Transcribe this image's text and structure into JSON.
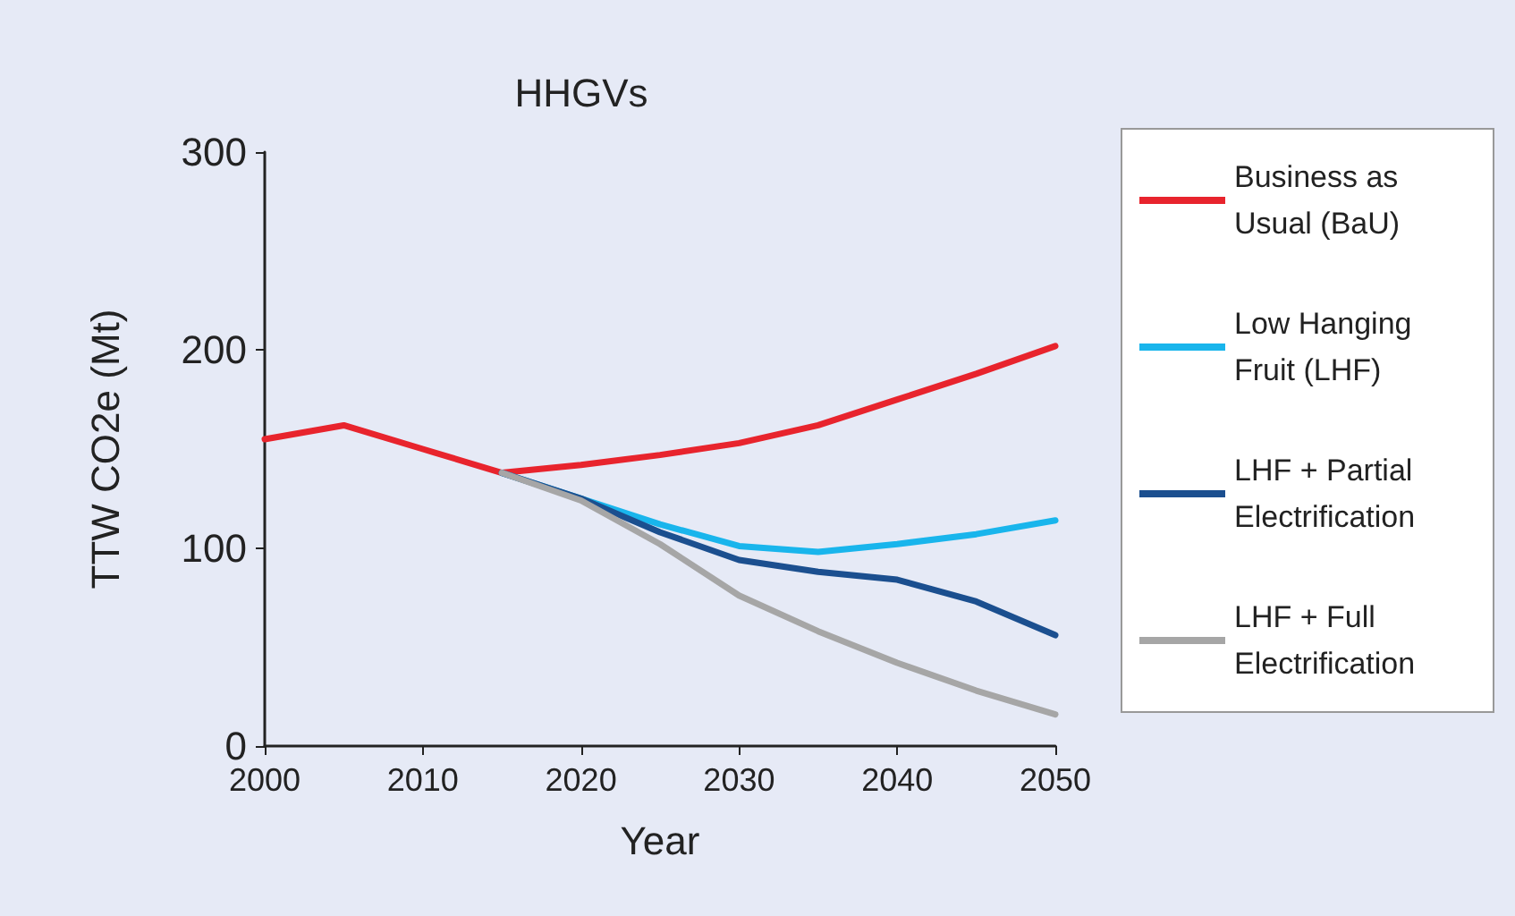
{
  "chart_data": {
    "type": "line",
    "title": "HHGVs",
    "xlabel": "Year",
    "ylabel": "TTW CO2e (Mt)",
    "x": [
      2000,
      2005,
      2010,
      2015,
      2020,
      2025,
      2030,
      2035,
      2040,
      2045,
      2050
    ],
    "series": [
      {
        "name": "Business as Usual (BaU)",
        "color": "#e8242d",
        "values": [
          155,
          162,
          150,
          138,
          142,
          147,
          153,
          162,
          175,
          188,
          202
        ]
      },
      {
        "name": "Low Hanging Fruit (LHF)",
        "color": "#19b5ec",
        "values": [
          null,
          null,
          null,
          138,
          125,
          112,
          101,
          98,
          102,
          107,
          114
        ]
      },
      {
        "name": "LHF + Partial Electrification",
        "color": "#1b4f8f",
        "values": [
          null,
          null,
          null,
          138,
          125,
          108,
          94,
          88,
          84,
          73,
          56
        ]
      },
      {
        "name": "LHF + Full Electrification",
        "color": "#a6a6a6",
        "values": [
          null,
          null,
          null,
          138,
          124,
          102,
          76,
          58,
          42,
          28,
          16
        ]
      }
    ],
    "xlim": [
      2000,
      2050
    ],
    "xticks": [
      2000,
      2010,
      2020,
      2030,
      2040,
      2050
    ],
    "ylim": [
      0,
      300
    ],
    "yticks": [
      0,
      100,
      200,
      300
    ],
    "grid": false,
    "legend": "right",
    "marker": "none",
    "line_style": "solid"
  }
}
